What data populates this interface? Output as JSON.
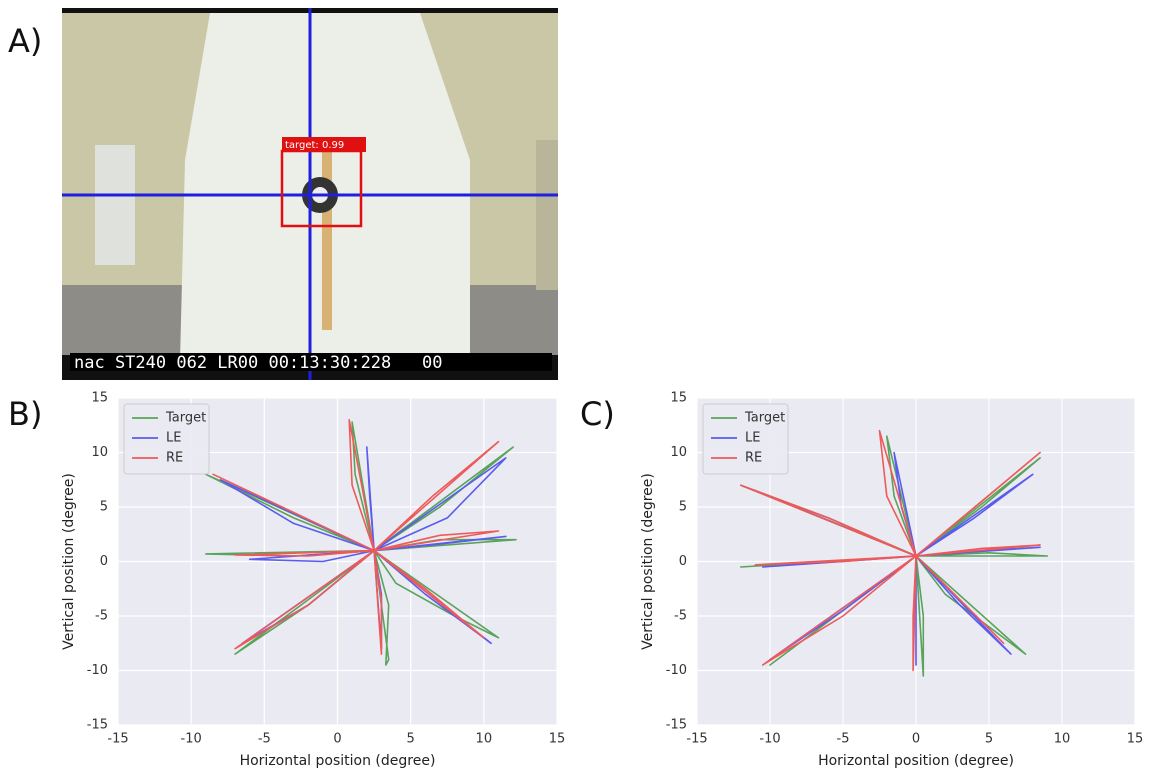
{
  "photo": {
    "label": "A)",
    "detection_label": "target: 0.99",
    "timestamp": "nac ST240 062 LR00 00:13:30:228   00"
  },
  "chart_data": [
    {
      "type": "line",
      "label": "B)",
      "xlabel": "Horizontal position (degree)",
      "ylabel": "Vertical position (degree)",
      "xlim": [
        -15,
        15
      ],
      "ylim": [
        -15,
        15
      ],
      "xticks": [
        -15,
        -10,
        -5,
        0,
        5,
        10,
        15
      ],
      "yticks": [
        -15,
        -10,
        -5,
        0,
        5,
        10,
        15
      ],
      "grid": true,
      "legend": "upper left",
      "series": [
        {
          "name": "Target",
          "color": "#5aa35a",
          "x": [
            2.5,
            1.2,
            1.0,
            2.5,
            7,
            12,
            2.5,
            7,
            12.2,
            2.5,
            4,
            8,
            11,
            2.5,
            3.5,
            3.3,
            3.5,
            2.5,
            -2,
            -7,
            2.5,
            -3,
            -9,
            2.5,
            -3,
            -9,
            2.5
          ],
          "values": [
            1,
            8,
            12.8,
            1,
            5,
            10.5,
            1,
            2,
            2,
            1,
            -2,
            -5,
            -7,
            1,
            -4,
            -9.5,
            -9,
            1,
            -4,
            -8.5,
            1,
            0.5,
            0.7,
            1,
            4,
            8,
            1
          ]
        },
        {
          "name": "LE",
          "color": "#5b5bf0",
          "x": [
            2.5,
            2.2,
            2,
            2.5,
            7.5,
            11.5,
            2.5,
            7,
            11.5,
            2.5,
            6,
            10.5,
            2.5,
            3,
            3,
            2.5,
            -2,
            -6.5,
            2.5,
            -1,
            -6,
            2.5,
            -3,
            -8,
            2.5
          ],
          "values": [
            1,
            6,
            10.5,
            1,
            4,
            9.5,
            1,
            1.6,
            2.3,
            1,
            -3,
            -7.5,
            1,
            -3,
            -8,
            1,
            -4,
            -7.5,
            1,
            0,
            0.2,
            1,
            3.5,
            7.5,
            1
          ]
        },
        {
          "name": "RE",
          "color": "#ee5a5a",
          "x": [
            2.5,
            1,
            0.8,
            2.5,
            6.5,
            11,
            2.5,
            7,
            11,
            2.5,
            6,
            10,
            2.5,
            3,
            3,
            2.5,
            -2,
            -7,
            2.5,
            -2,
            -7,
            2.5,
            -3,
            -8.5,
            2.5
          ],
          "values": [
            1,
            7,
            13,
            1,
            6,
            11,
            1,
            2.4,
            2.8,
            1,
            -2.5,
            -7,
            1,
            -3.5,
            -8.5,
            1,
            -4,
            -8,
            1,
            0.5,
            0.6,
            1,
            4.5,
            8,
            1
          ]
        }
      ]
    },
    {
      "type": "line",
      "label": "C)",
      "xlabel": "Horizontal position (degree)",
      "ylabel": "Vertical position (degree)",
      "xlim": [
        -15,
        15
      ],
      "ylim": [
        -15,
        15
      ],
      "xticks": [
        -15,
        -10,
        -5,
        0,
        5,
        10,
        15
      ],
      "yticks": [
        -15,
        -10,
        -5,
        0,
        5,
        10,
        15
      ],
      "grid": true,
      "legend": "upper left",
      "series": [
        {
          "name": "Target",
          "color": "#5aa35a",
          "x": [
            0,
            -1.5,
            -2,
            0,
            4.5,
            8.5,
            0,
            5,
            9,
            0,
            2,
            7.5,
            0,
            0.5,
            0.5,
            0,
            -5,
            -10,
            0,
            -6,
            -12,
            0,
            -6,
            -12,
            0
          ],
          "values": [
            0.5,
            6,
            11.5,
            0.5,
            5,
            9.5,
            0.5,
            0.8,
            0.5,
            0.5,
            -3,
            -8.5,
            0.5,
            -5,
            -10.5,
            0.5,
            -4.5,
            -9.5,
            0.5,
            0,
            -0.5,
            0.5,
            4,
            7,
            0.5
          ]
        },
        {
          "name": "LE",
          "color": "#5b5bf0",
          "x": [
            0,
            -1,
            -1.5,
            0,
            4,
            8,
            0,
            4.5,
            8.5,
            0,
            3,
            6.5,
            0,
            0,
            0,
            0,
            -5,
            -10,
            0,
            -5,
            -10.5,
            0,
            -5.5,
            -11,
            0
          ],
          "values": [
            0.5,
            5,
            10,
            0.5,
            4,
            8,
            0.5,
            1,
            1.3,
            0.5,
            -4,
            -8.5,
            0.5,
            -5,
            -9.5,
            0.5,
            -4.5,
            -9,
            0.5,
            0,
            -0.5,
            0.5,
            3.5,
            6.5,
            0.5
          ]
        },
        {
          "name": "RE",
          "color": "#ee5a5a",
          "x": [
            0,
            -2,
            -2.5,
            0,
            4.5,
            8.5,
            0,
            4.5,
            8.5,
            0,
            3,
            6,
            0,
            -0.2,
            -0.2,
            0,
            -5,
            -10.5,
            0,
            -5,
            -11,
            0,
            -6,
            -12,
            0
          ],
          "values": [
            0.5,
            6,
            12,
            0.5,
            5.5,
            10,
            0.5,
            1.2,
            1.5,
            0.5,
            -3.5,
            -7.5,
            0.5,
            -5,
            -10,
            0.5,
            -5,
            -9.5,
            0.5,
            0,
            -0.3,
            0.5,
            4,
            7,
            0.5
          ]
        }
      ]
    }
  ]
}
